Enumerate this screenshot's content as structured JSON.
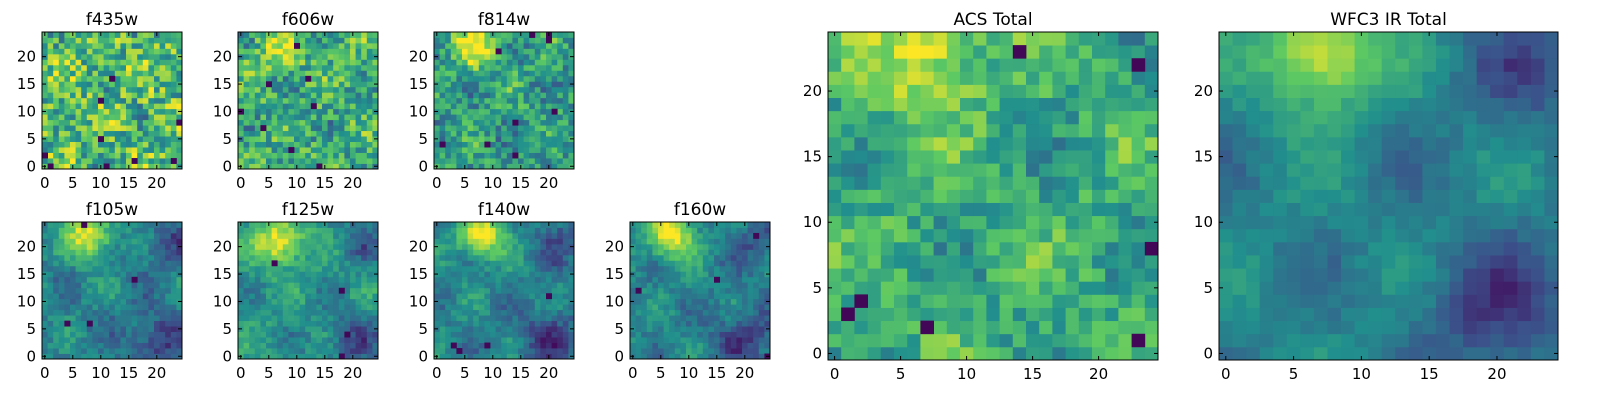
{
  "figure": {
    "colormap": "viridis",
    "colormap_stops": [
      "#440154",
      "#3b528b",
      "#21908d",
      "#5dc963",
      "#fde725"
    ]
  },
  "chart_data": [
    {
      "type": "heatmap",
      "title": "f435w",
      "grid_size": 25,
      "xlim": [
        0,
        24
      ],
      "ylim": [
        0,
        24
      ],
      "xticks": [
        "0",
        "5",
        "10",
        "15",
        "20"
      ],
      "yticks": [
        "0",
        "5",
        "10",
        "15",
        "20"
      ],
      "description": "noisy field, mostly green-yellow with scattered dark pixels",
      "bright_center": [
        8,
        20
      ],
      "bright_strength": 0.0,
      "noise_level": 0.55,
      "base_level": 0.68,
      "dark_pixels": 10
    },
    {
      "type": "heatmap",
      "title": "f606w",
      "grid_size": 25,
      "xlim": [
        0,
        24
      ],
      "ylim": [
        0,
        24
      ],
      "xticks": [
        "0",
        "5",
        "10",
        "15",
        "20"
      ],
      "yticks": [
        "0",
        "5",
        "10",
        "15",
        "20"
      ],
      "bright_center": [
        7,
        22
      ],
      "bright_strength": 0.25,
      "noise_level": 0.45,
      "base_level": 0.62,
      "dark_pixels": 8
    },
    {
      "type": "heatmap",
      "title": "f814w",
      "grid_size": 25,
      "xlim": [
        0,
        24
      ],
      "ylim": [
        0,
        24
      ],
      "xticks": [
        "0",
        "5",
        "10",
        "15",
        "20"
      ],
      "yticks": [
        "0",
        "5",
        "10",
        "15",
        "20"
      ],
      "bright_center": [
        7,
        22
      ],
      "bright_strength": 0.4,
      "noise_level": 0.4,
      "base_level": 0.55,
      "dark_pixels": 9
    },
    {
      "type": "heatmap",
      "title": "f105w",
      "grid_size": 25,
      "xlim": [
        0,
        24
      ],
      "ylim": [
        0,
        24
      ],
      "xticks": [
        "0",
        "5",
        "10",
        "15",
        "20"
      ],
      "yticks": [
        "0",
        "5",
        "10",
        "15",
        "20"
      ],
      "bright_center": [
        8,
        22
      ],
      "bright_strength": 0.55,
      "noise_level": 0.2,
      "base_level": 0.45,
      "dark_pixels": 4
    },
    {
      "type": "heatmap",
      "title": "f125w",
      "grid_size": 25,
      "xlim": [
        0,
        24
      ],
      "ylim": [
        0,
        24
      ],
      "xticks": [
        "0",
        "5",
        "10",
        "15",
        "20"
      ],
      "yticks": [
        "0",
        "5",
        "10",
        "15",
        "20"
      ],
      "bright_center": [
        7,
        21
      ],
      "bright_strength": 0.5,
      "noise_level": 0.2,
      "base_level": 0.52,
      "dark_pixels": 4
    },
    {
      "type": "heatmap",
      "title": "f140w",
      "grid_size": 25,
      "xlim": [
        0,
        24
      ],
      "ylim": [
        0,
        24
      ],
      "xticks": [
        "0",
        "5",
        "10",
        "15",
        "20"
      ],
      "yticks": [
        "0",
        "5",
        "10",
        "15",
        "20"
      ],
      "bright_center": [
        8,
        22
      ],
      "bright_strength": 0.55,
      "noise_level": 0.18,
      "base_level": 0.45,
      "dark_pixels": 4
    },
    {
      "type": "heatmap",
      "title": "f160w",
      "grid_size": 25,
      "xlim": [
        0,
        24
      ],
      "ylim": [
        0,
        24
      ],
      "xticks": [
        "0",
        "5",
        "10",
        "15",
        "20"
      ],
      "yticks": [
        "0",
        "5",
        "10",
        "15",
        "20"
      ],
      "bright_center": [
        7,
        22
      ],
      "bright_strength": 0.55,
      "noise_level": 0.18,
      "base_level": 0.45,
      "dark_pixels": 4
    },
    {
      "type": "heatmap",
      "title": "ACS Total",
      "grid_size": 25,
      "xlim": [
        0,
        24
      ],
      "ylim": [
        0,
        24
      ],
      "xticks": [
        "0",
        "5",
        "10",
        "15",
        "20"
      ],
      "yticks": [
        "0",
        "5",
        "10",
        "15",
        "20"
      ],
      "bright_center": [
        7,
        23
      ],
      "bright_strength": 0.35,
      "noise_level": 0.3,
      "base_level": 0.62,
      "dark_pixels": 7
    },
    {
      "type": "heatmap",
      "title": "WFC3 IR Total",
      "grid_size": 25,
      "xlim": [
        0,
        24
      ],
      "ylim": [
        0,
        24
      ],
      "xticks": [
        "0",
        "5",
        "10",
        "15",
        "20"
      ],
      "yticks": [
        "0",
        "5",
        "10",
        "15",
        "20"
      ],
      "bright_center": [
        7,
        23
      ],
      "bright_strength": 0.55,
      "noise_level": 0.1,
      "base_level": 0.45,
      "dark_pixels": 0
    }
  ]
}
